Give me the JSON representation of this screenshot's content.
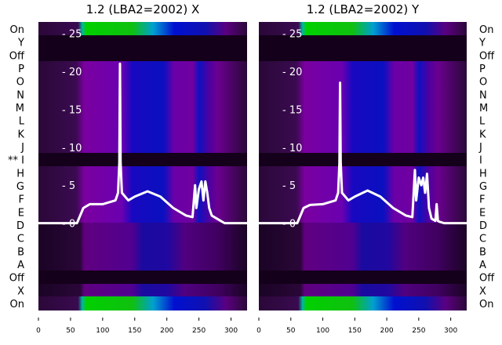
{
  "chart_data": [
    {
      "type": "line",
      "title": "1.2 (LBA2=2002) X",
      "xlim": [
        0,
        325
      ],
      "ylim": [
        -11.5,
        26.5
      ],
      "xticks": [
        "0",
        "50",
        "100",
        "150",
        "200",
        "250",
        "300"
      ],
      "yticks": [
        "25",
        "20",
        "15",
        "10",
        "5",
        "0"
      ],
      "row_labels": [
        "On",
        "Y",
        "Off",
        "P",
        "O",
        "N",
        "M",
        "L",
        "K",
        "J",
        "** I",
        "H",
        "G",
        "F",
        "E",
        "D",
        "C",
        "B",
        "A",
        "Off",
        "X",
        "On"
      ],
      "series": [
        {
          "name": "X",
          "x": [
            0,
            60,
            65,
            70,
            80,
            100,
            120,
            124,
            126,
            127,
            128,
            130,
            140,
            150,
            170,
            190,
            210,
            230,
            240,
            244,
            246,
            250,
            254,
            257,
            260,
            263,
            266,
            270,
            280,
            290,
            325
          ],
          "y": [
            0,
            0,
            1,
            2,
            2.5,
            2.5,
            3,
            4,
            8,
            21,
            8,
            4,
            3,
            3.5,
            4.2,
            3.5,
            2,
            1,
            0.8,
            5,
            2,
            4.5,
            5.5,
            3,
            5.5,
            4,
            2,
            1,
            0.5,
            0,
            0
          ]
        }
      ]
    },
    {
      "type": "line",
      "title": "1.2 (LBA2=2002) Y",
      "xlim": [
        0,
        325
      ],
      "ylim": [
        -11.5,
        26.5
      ],
      "xticks": [
        "0",
        "50",
        "100",
        "150",
        "200",
        "250",
        "300"
      ],
      "yticks": [
        "25",
        "20",
        "15",
        "10",
        "5",
        "0"
      ],
      "row_labels": [
        "On",
        "Y",
        "Off",
        "P",
        "O",
        "N",
        "M",
        "L",
        "K",
        "J",
        "I",
        "H",
        "G",
        "F",
        "E",
        "D",
        "C",
        "B",
        "A",
        "Off",
        "X",
        "On"
      ],
      "series": [
        {
          "name": "Y",
          "x": [
            0,
            60,
            65,
            70,
            80,
            100,
            120,
            124,
            126,
            127,
            128,
            130,
            140,
            150,
            170,
            190,
            210,
            230,
            240,
            244,
            246,
            250,
            254,
            257,
            260,
            263,
            266,
            270,
            276,
            278,
            280,
            282,
            290,
            325
          ],
          "y": [
            0,
            0,
            1,
            2,
            2.4,
            2.5,
            3,
            4,
            8,
            18.5,
            8,
            4,
            3,
            3.5,
            4.3,
            3.5,
            2,
            1,
            0.8,
            7,
            3,
            6,
            5,
            6,
            4,
            6.5,
            2,
            0.6,
            0.3,
            2.5,
            0.3,
            0.2,
            0,
            0
          ]
        }
      ]
    }
  ],
  "colors": {
    "line": "#ffffff",
    "dark": "#14001a",
    "purple": "#7a00a0",
    "blue": "#0010c8",
    "green": "#00c800"
  }
}
